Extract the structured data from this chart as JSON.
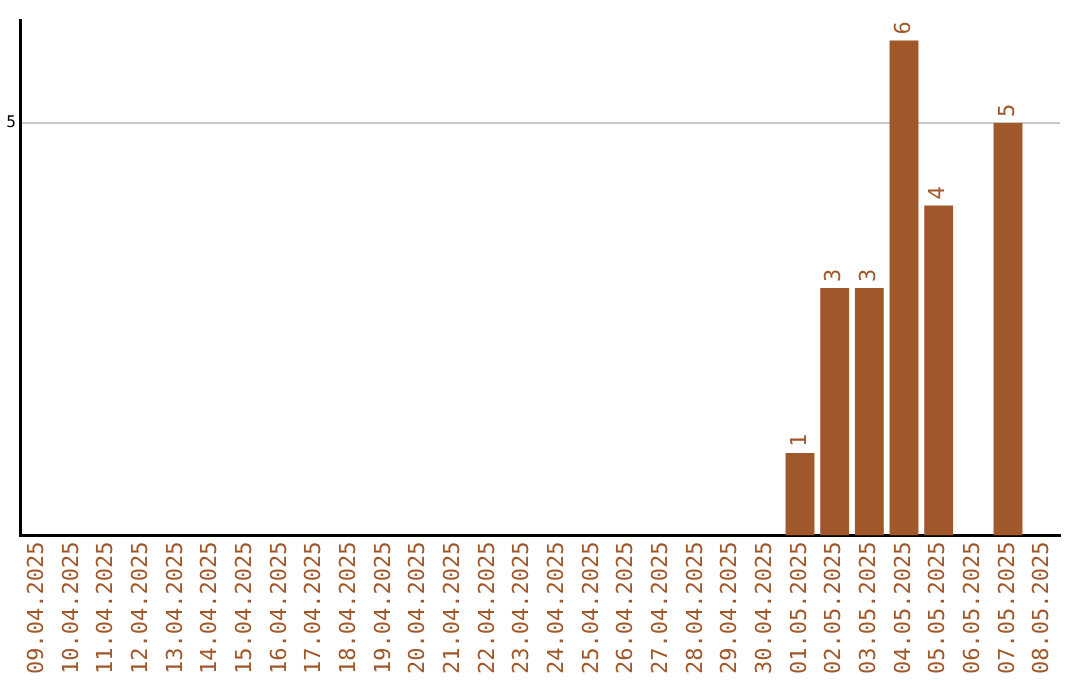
{
  "chart_data": {
    "type": "bar",
    "categories": [
      "09.04.2025",
      "10.04.2025",
      "11.04.2025",
      "12.04.2025",
      "13.04.2025",
      "14.04.2025",
      "15.04.2025",
      "16.04.2025",
      "17.04.2025",
      "18.04.2025",
      "19.04.2025",
      "20.04.2025",
      "21.04.2025",
      "22.04.2025",
      "23.04.2025",
      "24.04.2025",
      "25.04.2025",
      "26.04.2025",
      "27.04.2025",
      "28.04.2025",
      "29.04.2025",
      "30.04.2025",
      "01.05.2025",
      "02.05.2025",
      "03.05.2025",
      "04.05.2025",
      "05.05.2025",
      "06.05.2025",
      "07.05.2025",
      "08.05.2025"
    ],
    "values": [
      null,
      null,
      null,
      null,
      null,
      null,
      null,
      null,
      null,
      null,
      null,
      null,
      null,
      null,
      null,
      null,
      null,
      null,
      null,
      null,
      null,
      null,
      1,
      3,
      3,
      6,
      4,
      null,
      5,
      null
    ],
    "data_labels": true,
    "color": "#a0582a",
    "ylim": [
      0,
      6.25
    ],
    "yticks": [
      5
    ],
    "grid": "y",
    "legend": false
  }
}
